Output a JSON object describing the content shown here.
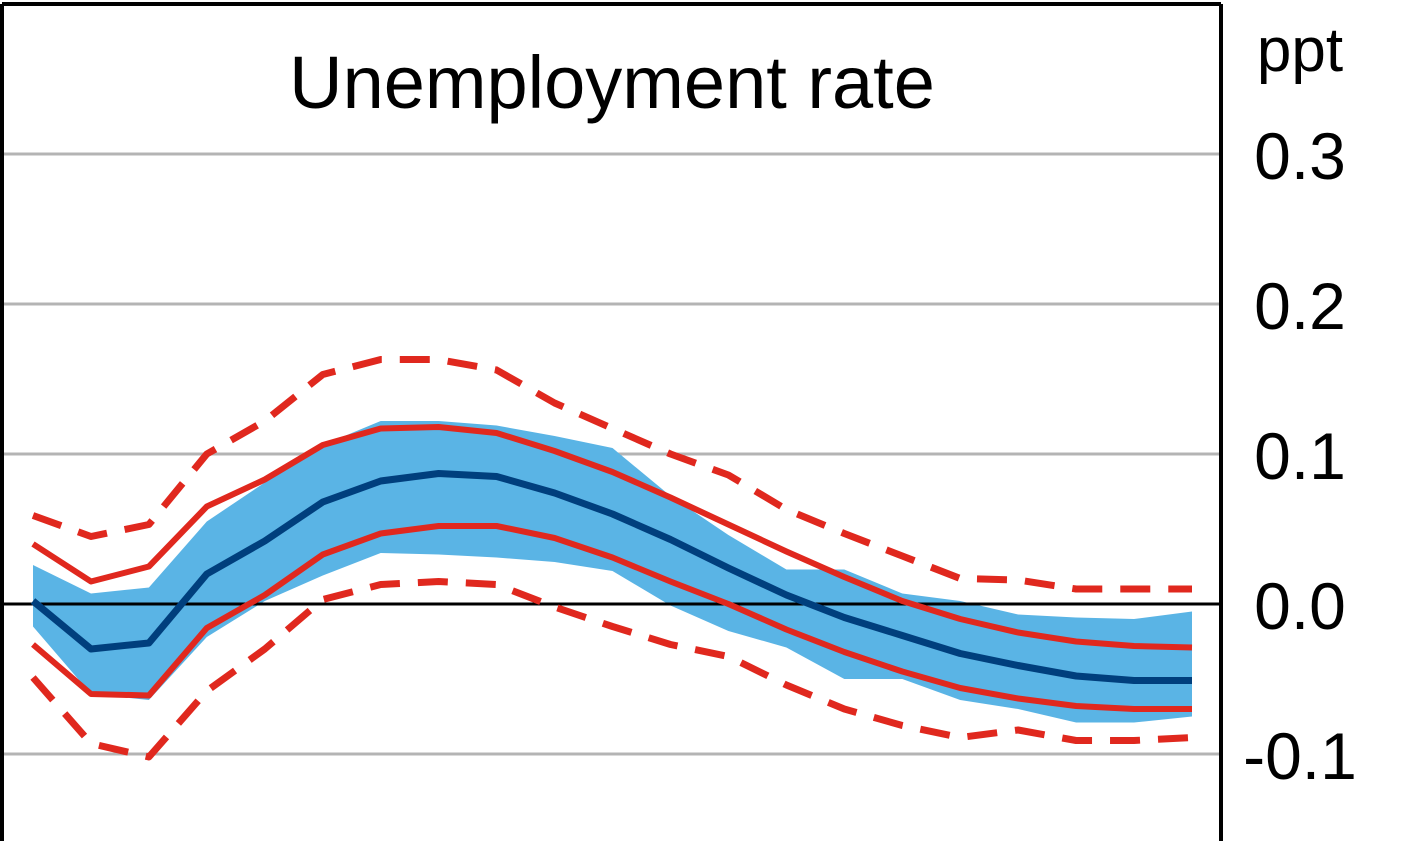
{
  "chart_data": {
    "type": "line",
    "title": "Unemployment rate",
    "unit_label": "ppt",
    "xlabel": "",
    "ylabel": "",
    "ylim": [
      -0.155,
      0.4
    ],
    "y_ticks": [
      {
        "value": 0.3,
        "label": "0.3"
      },
      {
        "value": 0.2,
        "label": "0.2"
      },
      {
        "value": 0.1,
        "label": "0.1"
      },
      {
        "value": 0.0,
        "label": "0.0"
      },
      {
        "value": -0.1,
        "label": "-0.1"
      }
    ],
    "x": [
      1,
      2,
      3,
      4,
      5,
      6,
      7,
      8,
      9,
      10,
      11,
      12,
      13,
      14,
      15,
      16,
      17,
      18,
      19,
      20,
      21
    ],
    "band": {
      "upper": [
        0.026,
        0.007,
        0.011,
        0.055,
        0.081,
        0.106,
        0.122,
        0.122,
        0.119,
        0.112,
        0.104,
        0.072,
        0.046,
        0.023,
        0.023,
        0.007,
        0.002,
        -0.007,
        -0.009,
        -0.01,
        -0.005
      ],
      "lower": [
        -0.015,
        -0.06,
        -0.064,
        -0.022,
        0.002,
        0.019,
        0.034,
        0.033,
        0.031,
        0.028,
        0.022,
        -0.001,
        -0.018,
        -0.029,
        -0.05,
        -0.05,
        -0.064,
        -0.07,
        -0.079,
        -0.079,
        -0.075
      ]
    },
    "series": [
      {
        "values": [
          0.002,
          -0.03,
          -0.026,
          0.02,
          0.042,
          0.068,
          0.082,
          0.087,
          0.085,
          0.074,
          0.06,
          0.043,
          0.024,
          0.006,
          -0.009,
          -0.021,
          -0.033,
          -0.041,
          -0.048,
          -0.051,
          -0.051
        ]
      },
      {
        "values": [
          0.04,
          0.015,
          0.025,
          0.065,
          0.083,
          0.106,
          0.117,
          0.118,
          0.114,
          0.102,
          0.088,
          0.071,
          0.053,
          0.035,
          0.018,
          0.002,
          -0.01,
          -0.019,
          -0.025,
          -0.028,
          -0.029
        ]
      },
      {
        "values": [
          -0.027,
          -0.06,
          -0.061,
          -0.016,
          0.006,
          0.033,
          0.047,
          0.052,
          0.052,
          0.044,
          0.031,
          0.015,
          0.0,
          -0.017,
          -0.032,
          -0.045,
          -0.056,
          -0.063,
          -0.068,
          -0.07,
          -0.07
        ]
      },
      {
        "values": [
          0.059,
          0.045,
          0.053,
          0.1,
          0.122,
          0.153,
          0.163,
          0.163,
          0.156,
          0.134,
          0.117,
          0.1,
          0.086,
          0.063,
          0.047,
          0.032,
          0.017,
          0.016,
          0.01,
          0.01,
          0.01
        ]
      },
      {
        "values": [
          -0.049,
          -0.093,
          -0.102,
          -0.058,
          -0.03,
          0.003,
          0.013,
          0.015,
          0.013,
          -0.002,
          -0.015,
          -0.027,
          -0.035,
          -0.054,
          -0.07,
          -0.081,
          -0.089,
          -0.084,
          -0.091,
          -0.091,
          -0.089
        ]
      }
    ],
    "colors": {
      "band": "#5ab4e5",
      "median": "#003f7d",
      "inner_bounds": "#e0281e",
      "outer_bounds": "#e0281e",
      "grid": "#b4b4b4",
      "axis": "#000000",
      "frame": "#000000"
    },
    "grid": true,
    "legend": "none"
  }
}
